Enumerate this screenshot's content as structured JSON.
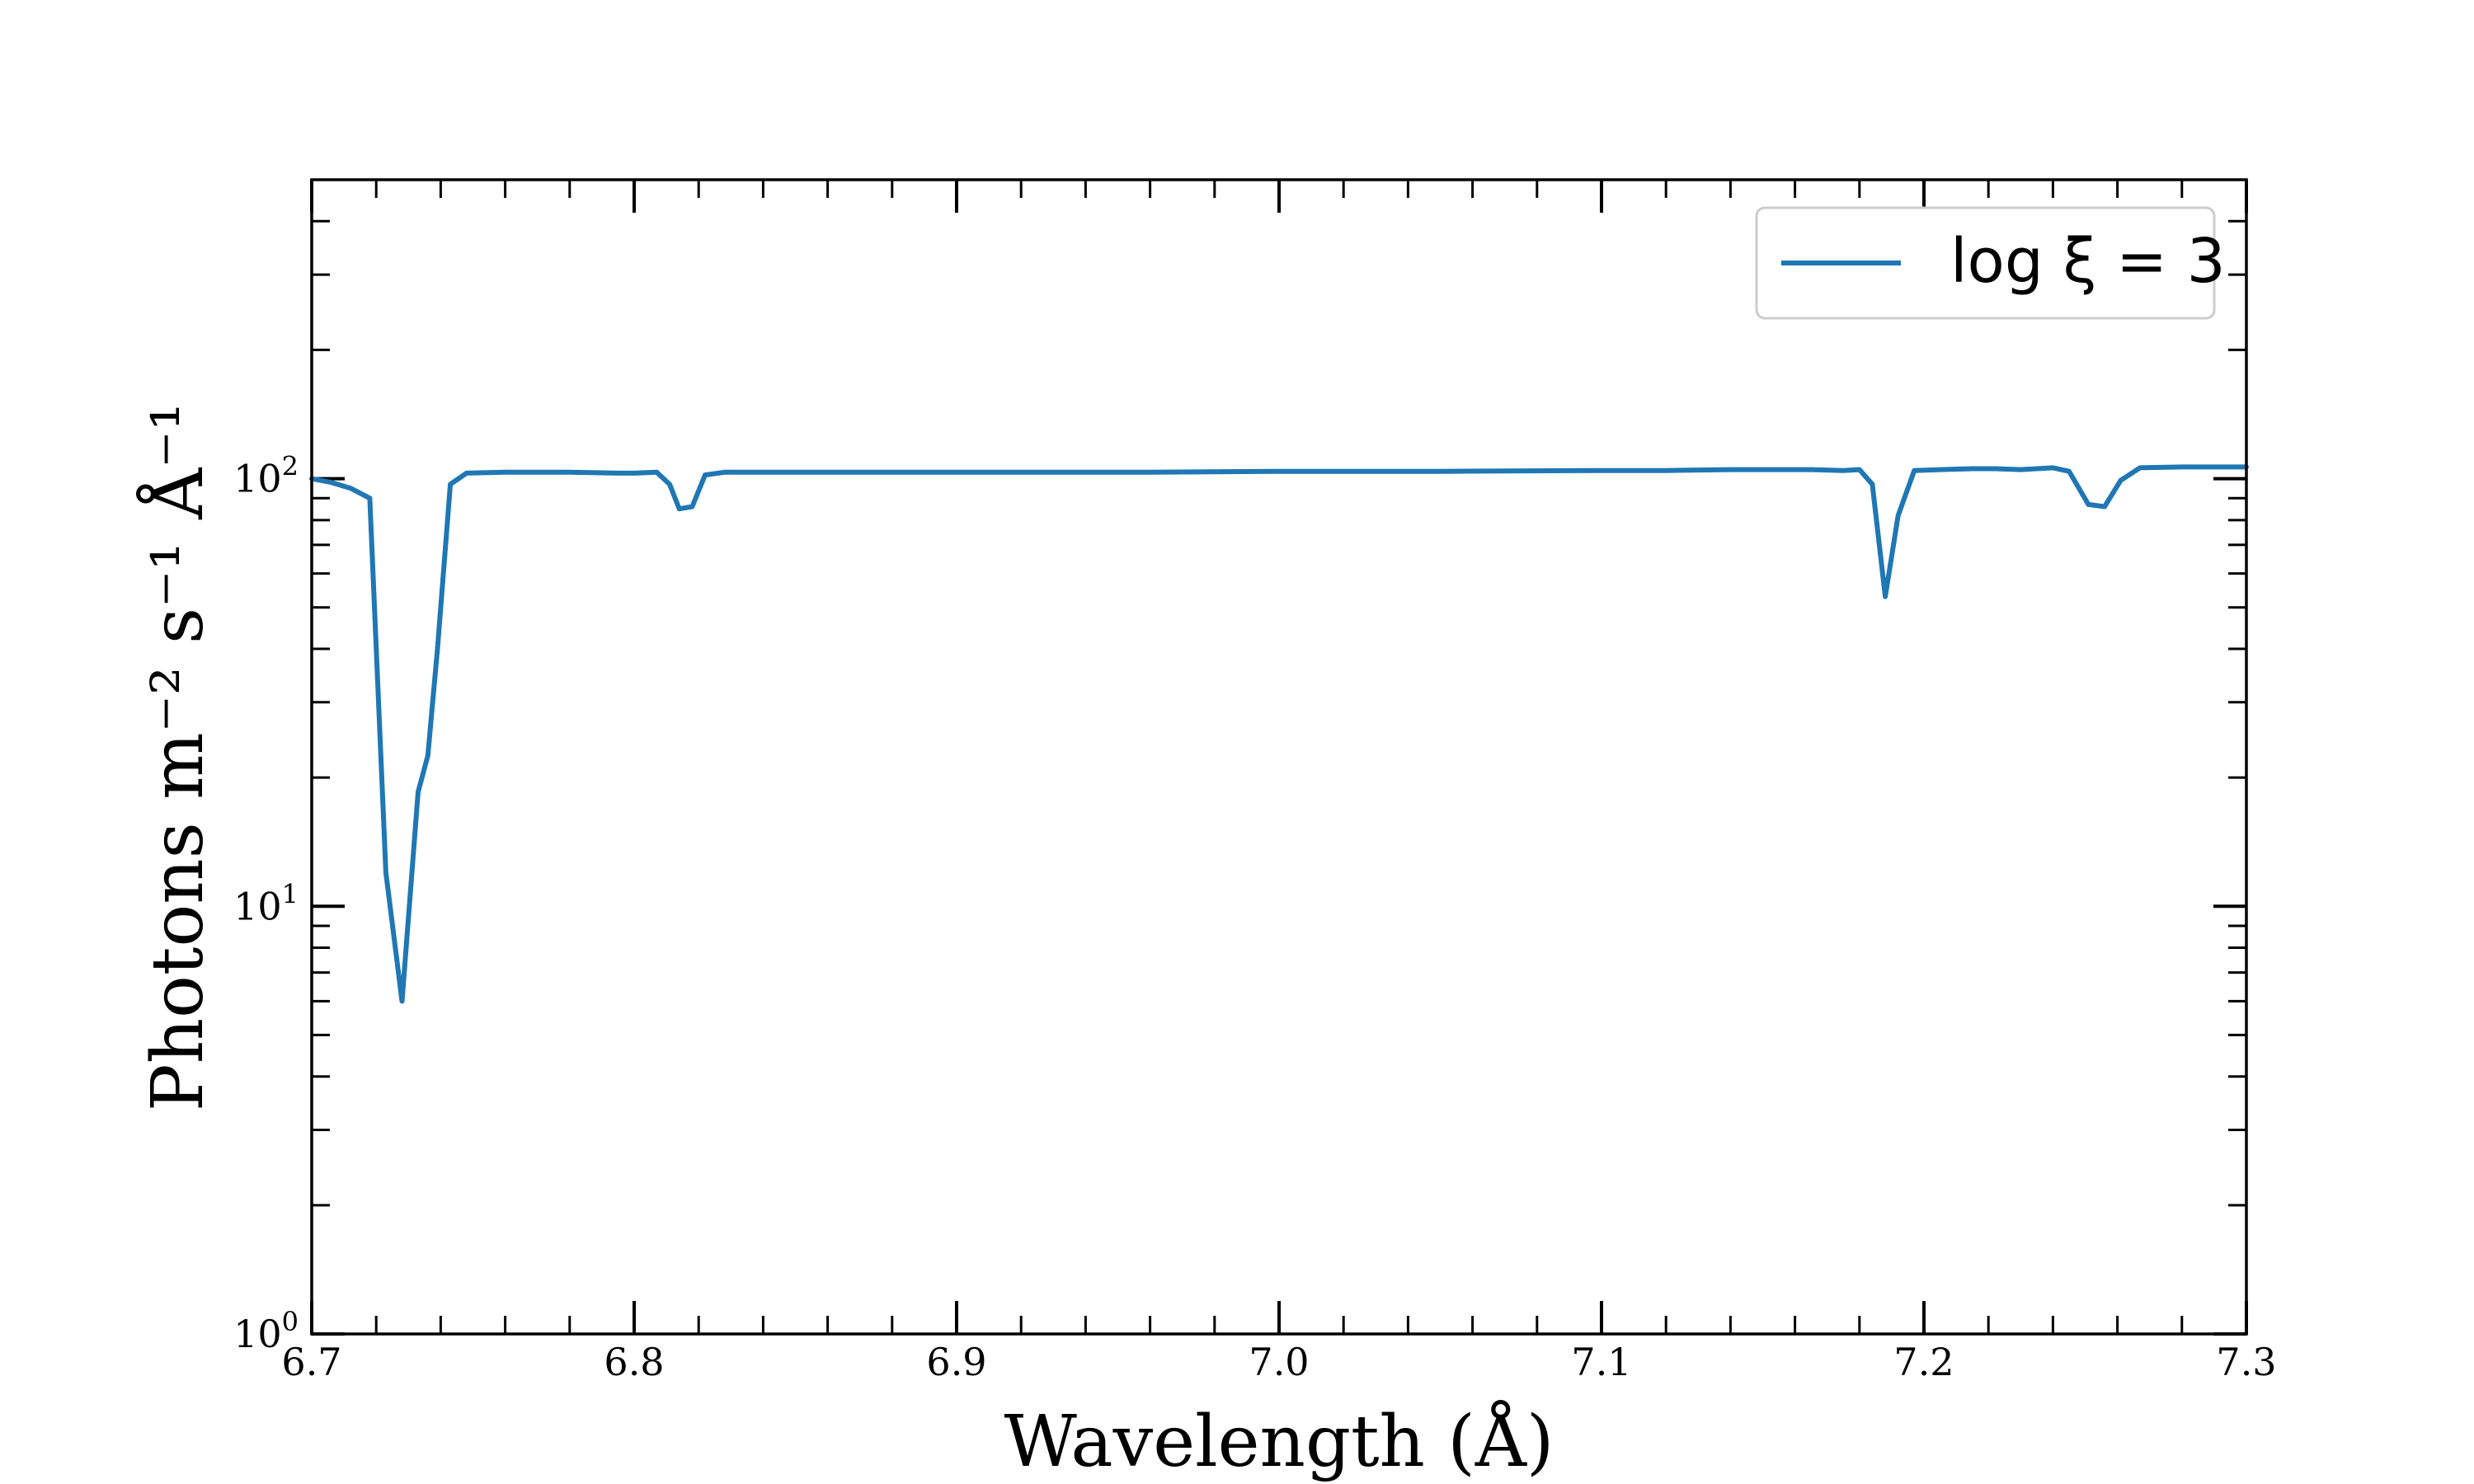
{
  "chart_data": {
    "type": "line",
    "title": "",
    "xlabel": "Wavelength (Å)",
    "ylabel": "Photons m⁻² s⁻¹ Å⁻¹",
    "xlim": [
      6.7,
      7.3
    ],
    "ylim": [
      1,
      500
    ],
    "yscale": "log",
    "grid": false,
    "legend_position": "top-right",
    "x_ticks": [
      "6.7",
      "6.8",
      "6.9",
      "7.0",
      "7.1",
      "7.2",
      "7.3"
    ],
    "y_ticks": [
      {
        "base": "10",
        "exp": "0"
      },
      {
        "base": "10",
        "exp": "1"
      },
      {
        "base": "10",
        "exp": "2"
      }
    ],
    "series": [
      {
        "name": "log ξ = 3",
        "color": "#1f77b4",
        "points": [
          [
            6.7,
            100
          ],
          [
            6.706,
            98
          ],
          [
            6.712,
            95
          ],
          [
            6.718,
            90
          ],
          [
            6.723,
            12
          ],
          [
            6.728,
            6
          ],
          [
            6.733,
            18.5
          ],
          [
            6.736,
            22.5
          ],
          [
            6.739,
            40
          ],
          [
            6.743,
            97
          ],
          [
            6.748,
            103
          ],
          [
            6.76,
            103.5
          ],
          [
            6.78,
            103.5
          ],
          [
            6.795,
            103
          ],
          [
            6.8,
            103
          ],
          [
            6.807,
            103.5
          ],
          [
            6.811,
            97
          ],
          [
            6.814,
            85
          ],
          [
            6.818,
            86
          ],
          [
            6.822,
            102
          ],
          [
            6.828,
            103.5
          ],
          [
            6.86,
            103.5
          ],
          [
            6.9,
            103.5
          ],
          [
            6.95,
            103.5
          ],
          [
            6.96,
            103.5
          ],
          [
            7.0,
            104
          ],
          [
            7.05,
            104
          ],
          [
            7.1,
            104.5
          ],
          [
            7.12,
            104.5
          ],
          [
            7.14,
            105
          ],
          [
            7.165,
            105
          ],
          [
            7.175,
            104.5
          ],
          [
            7.18,
            105
          ],
          [
            7.184,
            97
          ],
          [
            7.188,
            53
          ],
          [
            7.192,
            82
          ],
          [
            7.197,
            104.5
          ],
          [
            7.205,
            105
          ],
          [
            7.215,
            105.5
          ],
          [
            7.222,
            105.5
          ],
          [
            7.23,
            105
          ],
          [
            7.24,
            106
          ],
          [
            7.245,
            104
          ],
          [
            7.251,
            87
          ],
          [
            7.256,
            86
          ],
          [
            7.261,
            99
          ],
          [
            7.267,
            106
          ],
          [
            7.28,
            106.5
          ],
          [
            7.3,
            106.5
          ]
        ]
      }
    ]
  }
}
